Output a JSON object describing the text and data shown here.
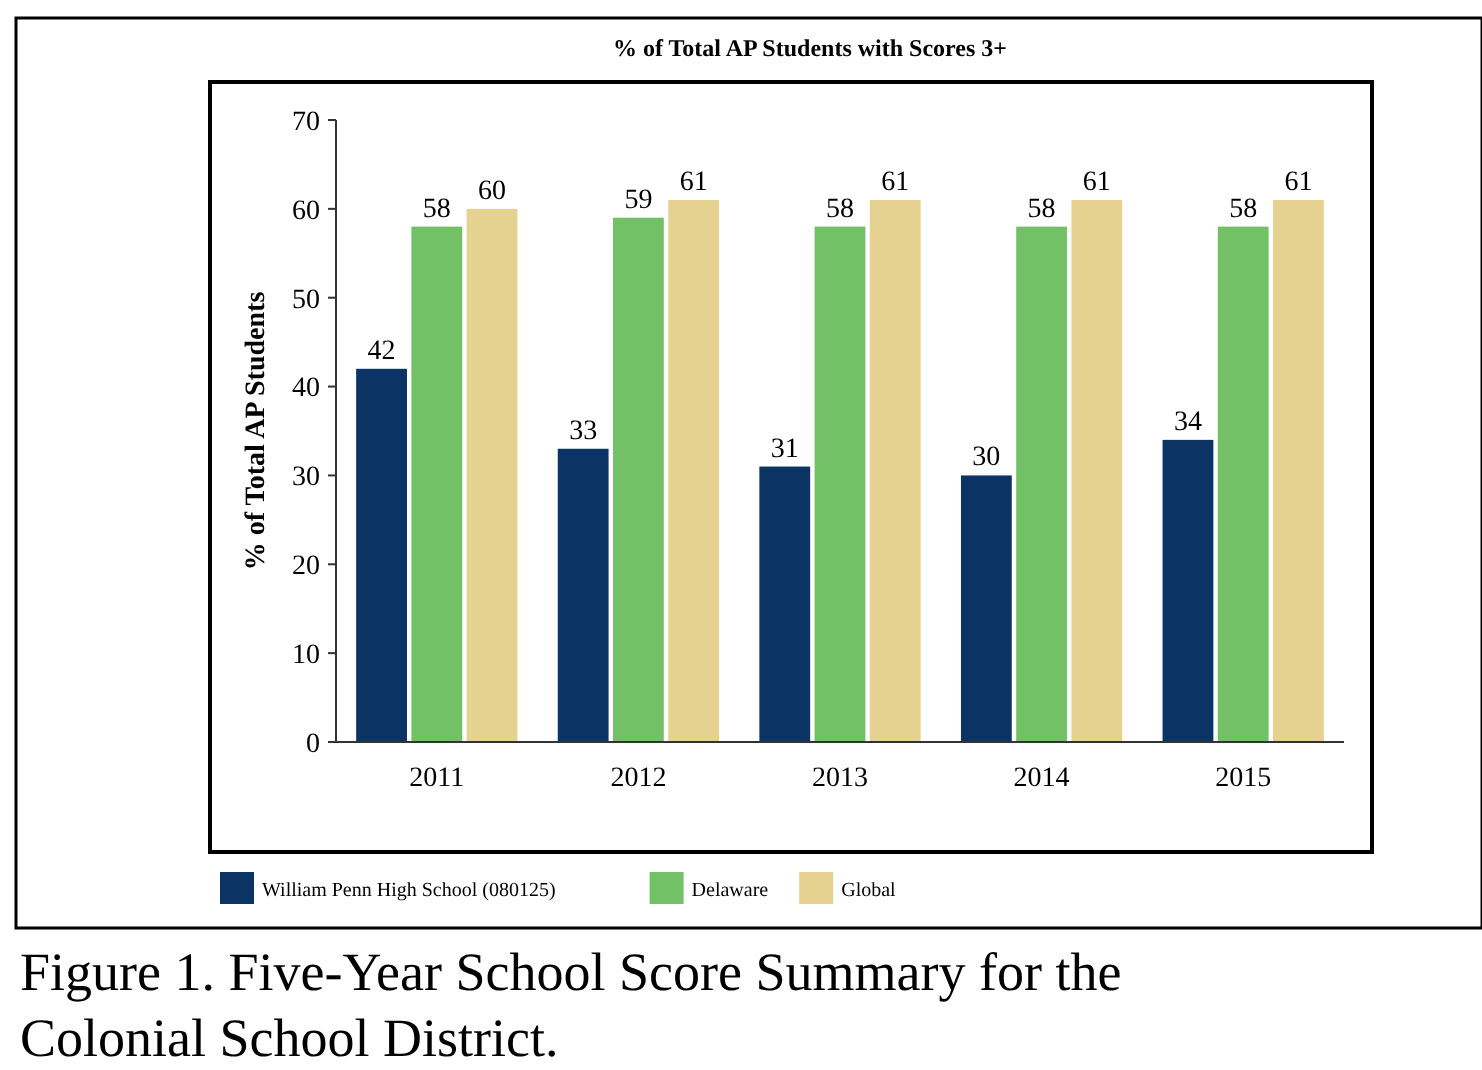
{
  "chart_data": {
    "type": "bar",
    "title": "% of Total AP Students with Scores 3+",
    "ylabel": "% of Total AP Students",
    "categories": [
      "2011",
      "2012",
      "2013",
      "2014",
      "2015"
    ],
    "series": [
      {
        "name": "William Penn High School (080125)",
        "color": "#0b3364",
        "values": [
          42,
          33,
          31,
          30,
          34
        ]
      },
      {
        "name": "Delaware",
        "color": "#72c167",
        "values": [
          58,
          59,
          58,
          58,
          58
        ]
      },
      {
        "name": "Global",
        "color": "#e5d290",
        "values": [
          60,
          61,
          61,
          61,
          61
        ]
      }
    ],
    "ylim": [
      0,
      70
    ],
    "yticks": [
      0,
      10,
      20,
      30,
      40,
      50,
      60,
      70
    ],
    "data_labels": true,
    "legend": "bottom",
    "grid": false,
    "annotations": [
      "Figure 1.  Five-Year School Score Summary for the Colonial School District."
    ]
  }
}
